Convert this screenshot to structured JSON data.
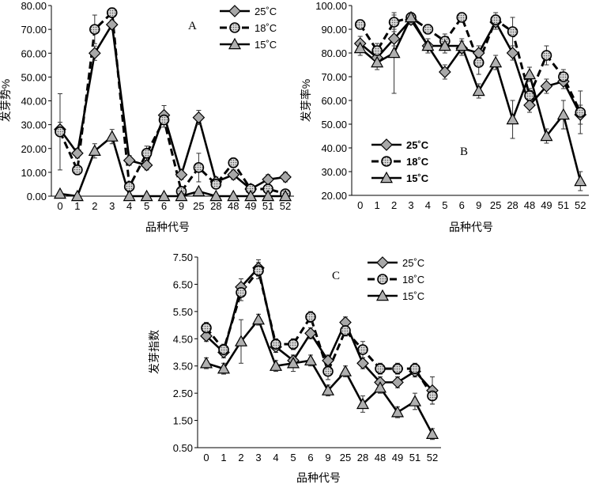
{
  "figure": {
    "xlabel": "品种代号",
    "legend_labels": [
      "25˚C",
      "18˚C",
      "15˚C"
    ],
    "colors": {
      "line": "#000000",
      "diamond_fill": "#a8a8a8",
      "triangle_fill": "#b0b0b0",
      "circle_fill": "#8a8a8a"
    }
  },
  "chart_data": [
    {
      "panel": "A",
      "type": "line",
      "ylabel": "发芽势%",
      "legend_position": "top-right",
      "ylim": [
        0,
        80
      ],
      "yticks": [
        "0.00",
        "10.00",
        "20.00",
        "30.00",
        "40.00",
        "50.00",
        "60.00",
        "70.00",
        "80.00"
      ],
      "categories": [
        "0",
        "1",
        "2",
        "3",
        "4",
        "5",
        "6",
        "9",
        "25",
        "28",
        "48",
        "49",
        "51",
        "52"
      ],
      "series": [
        {
          "name": "25˚C",
          "marker": "diamond",
          "dash": "solid",
          "values": [
            28,
            18,
            60,
            72,
            15,
            13,
            34,
            9,
            33,
            6,
            9,
            3,
            7,
            8
          ],
          "errors": [
            3,
            2,
            3,
            2,
            2,
            2,
            4,
            2,
            3,
            2,
            2,
            1,
            2,
            2
          ]
        },
        {
          "name": "18˚C",
          "marker": "circle",
          "dash": "dash",
          "values": [
            27,
            11,
            70,
            77,
            4,
            18,
            32,
            2,
            12,
            5,
            14,
            3,
            3,
            1
          ],
          "errors": [
            16,
            2,
            6,
            2,
            2,
            3,
            3,
            1,
            6,
            1,
            2,
            1,
            1,
            0.5
          ]
        },
        {
          "name": "15˚C",
          "marker": "triangle",
          "dash": "solid",
          "values": [
            1,
            0,
            19,
            25,
            0,
            0,
            0,
            0,
            2,
            0,
            0,
            0,
            0,
            0
          ],
          "errors": [
            0,
            0,
            3,
            3,
            0,
            0,
            0,
            0,
            1,
            0,
            0,
            0,
            0,
            0
          ]
        }
      ]
    },
    {
      "panel": "B",
      "type": "line",
      "ylabel": "发芽率%",
      "legend_position": "bottom-left",
      "ylim": [
        20,
        100
      ],
      "yticks": [
        "20.00",
        "30.00",
        "40.00",
        "50.00",
        "60.00",
        "70.00",
        "80.00",
        "90.00",
        "100.00"
      ],
      "categories": [
        "0",
        "1",
        "2",
        "3",
        "4",
        "5",
        "6",
        "9",
        "25",
        "28",
        "48",
        "49",
        "51",
        "52"
      ],
      "series": [
        {
          "name": "25˚C",
          "marker": "diamond",
          "dash": "solid",
          "values": [
            84,
            78,
            86,
            94,
            83,
            72,
            82,
            80,
            93,
            80,
            58,
            66,
            68,
            54
          ],
          "errors": [
            3,
            3,
            3,
            2,
            3,
            3,
            3,
            3,
            3,
            3,
            3,
            3,
            3,
            4
          ]
        },
        {
          "name": "18˚C",
          "marker": "circle",
          "dash": "dash",
          "values": [
            92,
            81,
            93,
            95,
            90,
            85,
            95,
            76,
            94,
            89,
            62,
            79,
            70,
            55
          ],
          "errors": [
            2,
            3,
            3,
            2,
            2,
            3,
            2,
            5,
            3,
            6,
            3,
            4,
            3,
            9
          ]
        },
        {
          "name": "15˚C",
          "marker": "triangle",
          "dash": "solid",
          "values": [
            82,
            76,
            80,
            95,
            83,
            83,
            83,
            64,
            76,
            52,
            71,
            45,
            54,
            26
          ],
          "errors": [
            3,
            3,
            17,
            2,
            3,
            3,
            3,
            3,
            3,
            8,
            3,
            3,
            6,
            4
          ]
        }
      ]
    },
    {
      "panel": "C",
      "type": "line",
      "ylabel": "发芽指数",
      "legend_position": "top-right",
      "ylim": [
        0.5,
        7.5
      ],
      "yticks": [
        "0.50",
        "1.50",
        "2.50",
        "3.50",
        "4.50",
        "5.50",
        "6.50",
        "7.50"
      ],
      "categories": [
        "0",
        "1",
        "2",
        "3",
        "4",
        "5",
        "6",
        "9",
        "25",
        "28",
        "48",
        "49",
        "51",
        "52"
      ],
      "series": [
        {
          "name": "25˚C",
          "marker": "diamond",
          "dash": "solid",
          "values": [
            4.6,
            4.0,
            6.4,
            7.1,
            4.2,
            3.7,
            4.7,
            3.7,
            5.1,
            3.6,
            2.9,
            2.9,
            3.3,
            2.6
          ],
          "errors": [
            0.2,
            0.2,
            0.3,
            0.3,
            0.2,
            0.2,
            0.2,
            0.2,
            0.2,
            0.2,
            0.2,
            0.2,
            0.2,
            0.5
          ]
        },
        {
          "name": "18˚C",
          "marker": "circle",
          "dash": "dash",
          "values": [
            4.9,
            4.1,
            6.2,
            7.0,
            4.3,
            4.3,
            5.3,
            3.3,
            4.8,
            4.1,
            3.4,
            3.4,
            3.4,
            2.4
          ],
          "errors": [
            0.2,
            0.2,
            0.3,
            0.3,
            0.2,
            0.2,
            0.2,
            0.3,
            0.2,
            0.3,
            0.2,
            0.2,
            0.2,
            0.3
          ]
        },
        {
          "name": "15˚C",
          "marker": "triangle",
          "dash": "solid",
          "values": [
            3.6,
            3.4,
            4.4,
            5.2,
            3.5,
            3.6,
            3.7,
            2.6,
            3.3,
            2.1,
            2.7,
            1.8,
            2.2,
            1.0
          ],
          "errors": [
            0.2,
            0.2,
            0.8,
            0.2,
            0.2,
            0.3,
            0.2,
            0.2,
            0.2,
            0.3,
            0.2,
            0.2,
            0.3,
            0.2
          ]
        }
      ]
    }
  ]
}
